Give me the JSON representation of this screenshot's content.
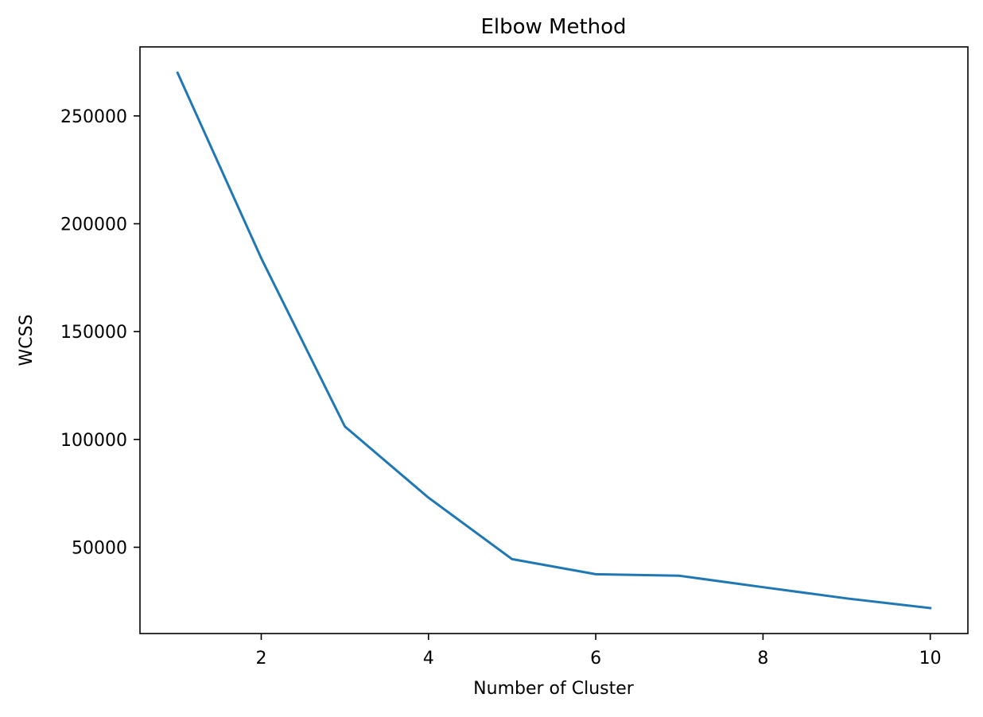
{
  "chart_data": {
    "type": "line",
    "title": "Elbow Method",
    "xlabel": "Number of Cluster",
    "ylabel": "WCSS",
    "xlim": [
      0.55,
      10.45
    ],
    "ylim": [
      10000,
      282000
    ],
    "x_ticks": [
      2,
      4,
      6,
      8,
      10
    ],
    "y_ticks": [
      50000,
      100000,
      150000,
      200000,
      250000
    ],
    "x_tick_labels": [
      "2",
      "4",
      "6",
      "8",
      "10"
    ],
    "y_tick_labels": [
      "50000",
      "100000",
      "150000",
      "200000",
      "250000"
    ],
    "grid": false,
    "series": [
      {
        "color": "#1f77b4",
        "x": [
          1,
          2,
          3,
          4,
          5,
          6,
          7,
          8,
          9,
          10
        ],
        "y": [
          270000,
          184000,
          106000,
          73000,
          44500,
          37500,
          36800,
          31500,
          26300,
          21800
        ]
      }
    ]
  }
}
